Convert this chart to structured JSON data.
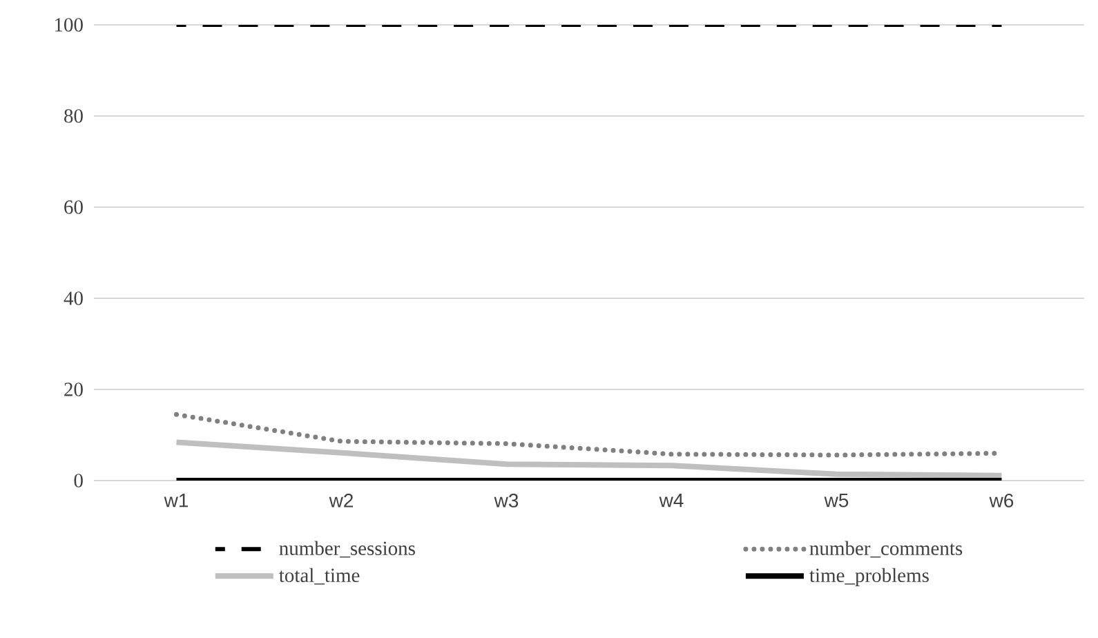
{
  "chart_data": {
    "type": "line",
    "categories": [
      "w1",
      "w2",
      "w3",
      "w4",
      "w5",
      "w6"
    ],
    "ylim": [
      0,
      100
    ],
    "yticks": [
      0,
      20,
      40,
      60,
      80,
      100
    ],
    "grid": "y",
    "legend": "bottom",
    "marker": "none",
    "series": [
      {
        "name": "number_sessions",
        "color": "#000000",
        "line_style": "dashed",
        "values": [
          100,
          100,
          100,
          100,
          100,
          100
        ]
      },
      {
        "name": "number_comments",
        "color": "#808080",
        "line_style": "dotted",
        "values": [
          14.5,
          8.6,
          8.1,
          5.8,
          5.6,
          6
        ]
      },
      {
        "name": "total_time",
        "color": "#bfbfbf",
        "line_style": "solid",
        "values": [
          8.4,
          6.1,
          3.6,
          3.3,
          1.4,
          1.1
        ]
      },
      {
        "name": "time_problems",
        "color": "#000000",
        "line_style": "solid",
        "values": [
          0,
          0,
          0,
          0,
          0,
          0
        ]
      }
    ]
  }
}
